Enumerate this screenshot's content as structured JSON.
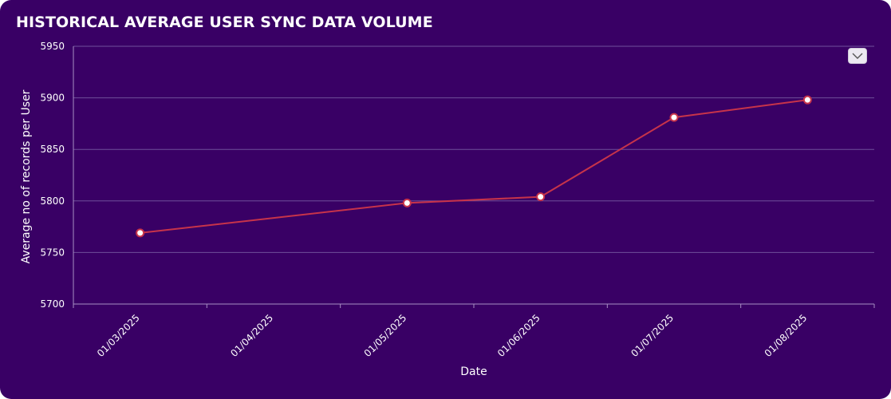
{
  "header": {
    "title": "HISTORICAL AVERAGE USER SYNC DATA VOLUME"
  },
  "menu": {
    "icon": "chevron-down-icon"
  },
  "colors": {
    "background": "#390065",
    "line": "#c7334a",
    "grid": "#6f4f9a",
    "axis": "#a78fc4",
    "text": "#ffffff"
  },
  "chart_data": {
    "type": "line",
    "title": "HISTORICAL AVERAGE USER SYNC DATA VOLUME",
    "xlabel": "Date",
    "ylabel": "Average no of records per User",
    "categories": [
      "01/03/2025",
      "01/04/2025",
      "01/05/2025",
      "01/06/2025",
      "01/07/2025",
      "01/08/2025"
    ],
    "series": [
      {
        "x": [
          "01/03/2025",
          "01/05/2025",
          "01/06/2025",
          "01/07/2025",
          "01/08/2025"
        ],
        "y": [
          5769,
          5798,
          5804,
          5881,
          5898
        ]
      }
    ],
    "ylim": [
      5700,
      5950
    ],
    "yticks": [
      5700,
      5750,
      5800,
      5850,
      5900,
      5950
    ],
    "grid": true,
    "legend": "none"
  }
}
